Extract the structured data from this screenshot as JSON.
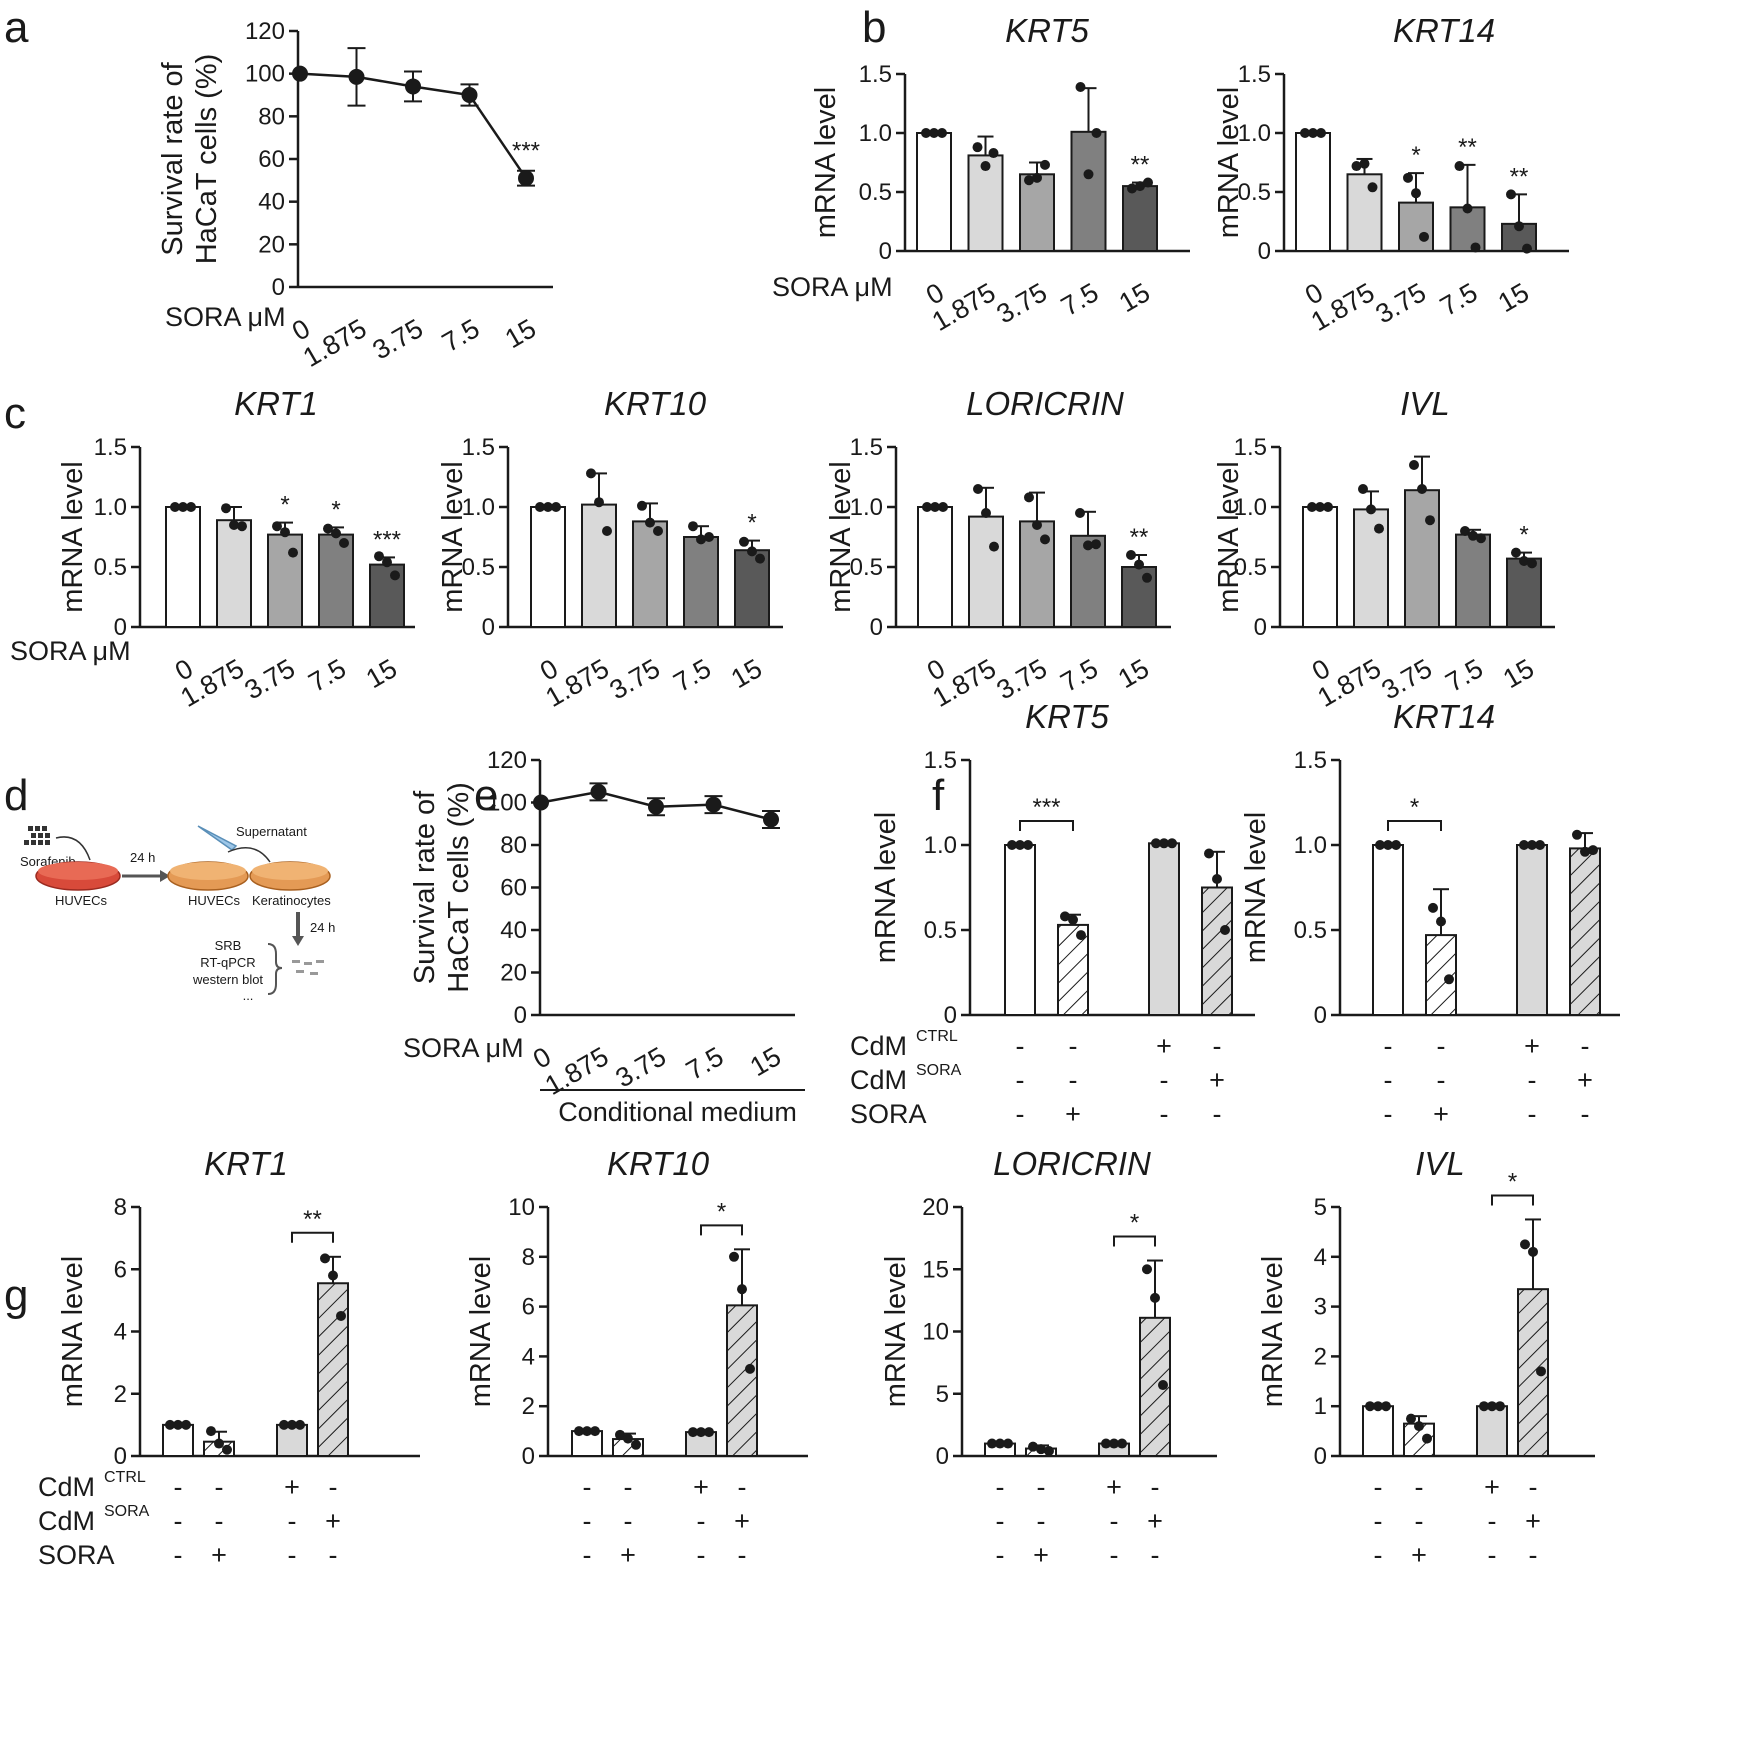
{
  "figure": {
    "panel_letters": [
      "a",
      "b",
      "c",
      "d",
      "e",
      "f",
      "g"
    ],
    "ylabel_mrna": "mRNA level",
    "ylabel_survival": "Survival rate of HaCaT cells (%)",
    "sora_um_label": "SORA μM",
    "conditional_medium_label": "Conditional medium",
    "cdm_prefix": "CdM",
    "cdm_ctrl_sup": "CTRL",
    "cdm_sora_sup": "SORA",
    "sora_label": "SORA"
  },
  "schematic": {
    "sorafenib": "Sorafenib",
    "huvecs_1": "HUVECs",
    "step_1": "24 h",
    "supernatant": "Supernatant",
    "huvecs_2": "HUVECs",
    "keratinocytes": "Keratinocytes",
    "step_2": "24 h",
    "assays": [
      "SRB",
      "RT-qPCR",
      "western blot",
      "..."
    ]
  },
  "chart_data": [
    {
      "id": "a",
      "type": "line",
      "title": "",
      "xlabel": "SORA μM",
      "ylabel": "Survival rate of HaCaT cells (%)",
      "categories": [
        "0",
        "1.875",
        "3.75",
        "7.5",
        "15"
      ],
      "values": [
        100,
        98.5,
        94,
        90,
        51
      ],
      "errors": [
        0,
        13.5,
        7,
        5,
        3.5
      ],
      "significance": [
        "",
        "",
        "",
        "",
        "***"
      ],
      "ylim": [
        0,
        120
      ],
      "yticks": [
        0,
        20,
        40,
        60,
        80,
        100,
        120
      ]
    },
    {
      "id": "b-krt5",
      "type": "bar",
      "title": "KRT5",
      "xlabel": "SORA μM",
      "ylabel": "mRNA level",
      "categories": [
        "0",
        "1.875",
        "3.75",
        "7.5",
        "15"
      ],
      "values": [
        1.0,
        0.81,
        0.65,
        1.01,
        0.55
      ],
      "errors": [
        0,
        0.16,
        0.1,
        0.37,
        0.03
      ],
      "points": [
        [
          1.0,
          1.0,
          1.0
        ],
        [
          0.88,
          0.72,
          0.83
        ],
        [
          0.6,
          0.62,
          0.73
        ],
        [
          1.39,
          0.65,
          1.0
        ],
        [
          0.53,
          0.55,
          0.58
        ]
      ],
      "significance": [
        "",
        "",
        "",
        "",
        "**"
      ],
      "ylim": [
        0,
        1.5
      ],
      "yticks": [
        "0",
        "0.5",
        "1.0",
        "1.5"
      ]
    },
    {
      "id": "b-krt14",
      "type": "bar",
      "title": "KRT14",
      "xlabel": "SORA μM",
      "ylabel": "mRNA level",
      "categories": [
        "0",
        "1.875",
        "3.75",
        "7.5",
        "15"
      ],
      "values": [
        1.0,
        0.65,
        0.41,
        0.37,
        0.23
      ],
      "errors": [
        0,
        0.13,
        0.25,
        0.36,
        0.25
      ],
      "points": [
        [
          1.0,
          1.0,
          1.0
        ],
        [
          0.72,
          0.74,
          0.54
        ],
        [
          0.62,
          0.49,
          0.12
        ],
        [
          0.72,
          0.36,
          0.03
        ],
        [
          0.48,
          0.21,
          0.02
        ]
      ],
      "significance": [
        "",
        "",
        "*",
        "**",
        "**"
      ],
      "ylim": [
        0,
        1.5
      ],
      "yticks": [
        "0",
        "0.5",
        "1.0",
        "1.5"
      ]
    },
    {
      "id": "c-krt1",
      "type": "bar",
      "title": "KRT1",
      "xlabel": "SORA μM",
      "ylabel": "mRNA level",
      "categories": [
        "0",
        "1.875",
        "3.75",
        "7.5",
        "15"
      ],
      "values": [
        1.0,
        0.89,
        0.77,
        0.77,
        0.52
      ],
      "errors": [
        0,
        0.11,
        0.1,
        0.06,
        0.06
      ],
      "points": [
        [
          1.0,
          1.0,
          1.0
        ],
        [
          0.99,
          0.85,
          0.84
        ],
        [
          0.84,
          0.79,
          0.62
        ],
        [
          0.82,
          0.78,
          0.7
        ],
        [
          0.59,
          0.54,
          0.43
        ]
      ],
      "significance": [
        "",
        "",
        "*",
        "*",
        "***"
      ],
      "ylim": [
        0,
        1.5
      ],
      "yticks": [
        "0",
        "0.5",
        "1.0",
        "1.5"
      ]
    },
    {
      "id": "c-krt10",
      "type": "bar",
      "title": "KRT10",
      "xlabel": "SORA μM",
      "ylabel": "mRNA level",
      "categories": [
        "0",
        "1.875",
        "3.75",
        "7.5",
        "15"
      ],
      "values": [
        1.0,
        1.02,
        0.88,
        0.75,
        0.64
      ],
      "errors": [
        0,
        0.26,
        0.15,
        0.09,
        0.08
      ],
      "points": [
        [
          1.0,
          1.0,
          1.0
        ],
        [
          1.28,
          1.04,
          0.8
        ],
        [
          1.01,
          0.87,
          0.8
        ],
        [
          0.84,
          0.73,
          0.75
        ],
        [
          0.71,
          0.63,
          0.57
        ]
      ],
      "significance": [
        "",
        "",
        "",
        "",
        "*"
      ],
      "ylim": [
        0,
        1.5
      ],
      "yticks": [
        "0",
        "0.5",
        "1.0",
        "1.5"
      ]
    },
    {
      "id": "c-loricrin",
      "type": "bar",
      "title": "LORICRIN",
      "xlabel": "SORA μM",
      "ylabel": "mRNA level",
      "categories": [
        "0",
        "1.875",
        "3.75",
        "7.5",
        "15"
      ],
      "values": [
        1.0,
        0.92,
        0.88,
        0.76,
        0.5
      ],
      "errors": [
        0,
        0.24,
        0.24,
        0.2,
        0.1
      ],
      "points": [
        [
          1.0,
          1.0,
          1.0
        ],
        [
          1.15,
          0.95,
          0.67
        ],
        [
          1.08,
          0.85,
          0.73
        ],
        [
          0.95,
          0.68,
          0.69
        ],
        [
          0.6,
          0.52,
          0.41
        ]
      ],
      "significance": [
        "",
        "",
        "",
        "",
        "**"
      ],
      "ylim": [
        0,
        1.5
      ],
      "yticks": [
        "0",
        "0.5",
        "1.0",
        "1.5"
      ]
    },
    {
      "id": "c-ivl",
      "type": "bar",
      "title": "IVL",
      "xlabel": "SORA μM",
      "ylabel": "mRNA level",
      "categories": [
        "0",
        "1.875",
        "3.75",
        "7.5",
        "15"
      ],
      "values": [
        1.0,
        0.98,
        1.14,
        0.77,
        0.57
      ],
      "errors": [
        0,
        0.15,
        0.28,
        0.04,
        0.05
      ],
      "points": [
        [
          1.0,
          1.0,
          1.0
        ],
        [
          1.15,
          0.98,
          0.82
        ],
        [
          1.35,
          1.15,
          0.89
        ],
        [
          0.8,
          0.76,
          0.74
        ],
        [
          0.62,
          0.55,
          0.53
        ]
      ],
      "significance": [
        "",
        "",
        "",
        "",
        "*"
      ],
      "ylim": [
        0,
        1.5
      ],
      "yticks": [
        "0",
        "0.5",
        "1.0",
        "1.5"
      ]
    },
    {
      "id": "e",
      "type": "line",
      "title": "",
      "xlabel": "SORA μM",
      "ylabel": "Survival rate of HaCaT cells (%)",
      "categories": [
        "0",
        "1.875",
        "3.75",
        "7.5",
        "15"
      ],
      "values": [
        100,
        105,
        98,
        99,
        92
      ],
      "errors": [
        0,
        4,
        4,
        4,
        4
      ],
      "significance": [
        "",
        "",
        "",
        "",
        ""
      ],
      "group_label": "Conditional medium",
      "ylim": [
        0,
        120
      ],
      "yticks": [
        0,
        20,
        40,
        60,
        80,
        100,
        120
      ]
    },
    {
      "id": "f-krt5",
      "type": "bar",
      "title": "KRT5",
      "ylabel": "mRNA level",
      "conditions": [
        {
          "cdm_ctrl": "-",
          "cdm_sora": "-",
          "sora": "-"
        },
        {
          "cdm_ctrl": "-",
          "cdm_sora": "-",
          "sora": "+"
        },
        {
          "cdm_ctrl": "+",
          "cdm_sora": "-",
          "sora": "-"
        },
        {
          "cdm_ctrl": "-",
          "cdm_sora": "+",
          "sora": "-"
        }
      ],
      "values": [
        1.0,
        0.53,
        1.01,
        0.75
      ],
      "errors": [
        0,
        0.06,
        0,
        0.21
      ],
      "points": [
        [
          1.0,
          1.0,
          1.0
        ],
        [
          0.58,
          0.56,
          0.47
        ],
        [
          1.01,
          1.01,
          1.01
        ],
        [
          0.95,
          0.8,
          0.5
        ]
      ],
      "brackets": [
        {
          "from": 0,
          "to": 1,
          "label": "***"
        }
      ],
      "ylim": [
        0,
        1.5
      ],
      "yticks": [
        "0",
        "0.5",
        "1.0",
        "1.5"
      ]
    },
    {
      "id": "f-krt14",
      "type": "bar",
      "title": "KRT14",
      "ylabel": "mRNA level",
      "conditions": [
        {
          "cdm_ctrl": "-",
          "cdm_sora": "-",
          "sora": "-"
        },
        {
          "cdm_ctrl": "-",
          "cdm_sora": "-",
          "sora": "+"
        },
        {
          "cdm_ctrl": "+",
          "cdm_sora": "-",
          "sora": "-"
        },
        {
          "cdm_ctrl": "-",
          "cdm_sora": "+",
          "sora": "-"
        }
      ],
      "values": [
        1.0,
        0.47,
        1.0,
        0.98
      ],
      "errors": [
        0,
        0.27,
        0,
        0.09
      ],
      "points": [
        [
          1.0,
          1.0,
          1.0
        ],
        [
          0.63,
          0.55,
          0.21
        ],
        [
          1.0,
          1.0,
          1.0
        ],
        [
          1.06,
          0.96,
          0.97
        ]
      ],
      "brackets": [
        {
          "from": 0,
          "to": 1,
          "label": "*"
        }
      ],
      "ylim": [
        0,
        1.5
      ],
      "yticks": [
        "0",
        "0.5",
        "1.0",
        "1.5"
      ]
    },
    {
      "id": "g-krt1",
      "type": "bar",
      "title": "KRT1",
      "ylabel": "mRNA level",
      "conditions": [
        {
          "cdm_ctrl": "-",
          "cdm_sora": "-",
          "sora": "-"
        },
        {
          "cdm_ctrl": "-",
          "cdm_sora": "-",
          "sora": "+"
        },
        {
          "cdm_ctrl": "+",
          "cdm_sora": "-",
          "sora": "-"
        },
        {
          "cdm_ctrl": "-",
          "cdm_sora": "+",
          "sora": "-"
        }
      ],
      "values": [
        1.0,
        0.46,
        1.0,
        5.55
      ],
      "errors": [
        0,
        0.32,
        0,
        0.85
      ],
      "points": [
        [
          1.0,
          1.0,
          1.0
        ],
        [
          0.8,
          0.4,
          0.2
        ],
        [
          1.0,
          1.0,
          1.0
        ],
        [
          6.35,
          5.8,
          4.5
        ]
      ],
      "brackets": [
        {
          "from": 2,
          "to": 3,
          "label": "**"
        }
      ],
      "ylim": [
        0,
        8
      ],
      "yticks": [
        "0",
        "2",
        "4",
        "6",
        "8"
      ]
    },
    {
      "id": "g-krt10",
      "type": "bar",
      "title": "KRT10",
      "ylabel": "mRNA level",
      "conditions": [
        {
          "cdm_ctrl": "-",
          "cdm_sora": "-",
          "sora": "-"
        },
        {
          "cdm_ctrl": "-",
          "cdm_sora": "-",
          "sora": "+"
        },
        {
          "cdm_ctrl": "+",
          "cdm_sora": "-",
          "sora": "-"
        },
        {
          "cdm_ctrl": "-",
          "cdm_sora": "+",
          "sora": "-"
        }
      ],
      "values": [
        1.0,
        0.68,
        0.96,
        6.05
      ],
      "errors": [
        0,
        0.22,
        0,
        2.25
      ],
      "points": [
        [
          1.0,
          1.0,
          1.0
        ],
        [
          0.85,
          0.7,
          0.45
        ],
        [
          0.96,
          0.96,
          0.96
        ],
        [
          8.0,
          6.7,
          3.5
        ]
      ],
      "brackets": [
        {
          "from": 2,
          "to": 3,
          "label": "*"
        }
      ],
      "ylim": [
        0,
        10
      ],
      "yticks": [
        "0",
        "2",
        "4",
        "6",
        "8",
        "10"
      ]
    },
    {
      "id": "g-loricrin",
      "type": "bar",
      "title": "LORICRIN",
      "ylabel": "mRNA level",
      "conditions": [
        {
          "cdm_ctrl": "-",
          "cdm_sora": "-",
          "sora": "-"
        },
        {
          "cdm_ctrl": "-",
          "cdm_sora": "-",
          "sora": "+"
        },
        {
          "cdm_ctrl": "+",
          "cdm_sora": "-",
          "sora": "-"
        },
        {
          "cdm_ctrl": "-",
          "cdm_sora": "+",
          "sora": "-"
        }
      ],
      "values": [
        1.0,
        0.6,
        1.0,
        11.1
      ],
      "errors": [
        0,
        0.25,
        0,
        4.6
      ],
      "points": [
        [
          1.0,
          1.0,
          1.0
        ],
        [
          0.75,
          0.55,
          0.4
        ],
        [
          1.0,
          1.0,
          1.0
        ],
        [
          15.0,
          12.7,
          5.7
        ]
      ],
      "brackets": [
        {
          "from": 2,
          "to": 3,
          "label": "*"
        }
      ],
      "ylim": [
        0,
        20
      ],
      "yticks": [
        "0",
        "5",
        "10",
        "15",
        "20"
      ]
    },
    {
      "id": "g-ivl",
      "type": "bar",
      "title": "IVL",
      "ylabel": "mRNA level",
      "conditions": [
        {
          "cdm_ctrl": "-",
          "cdm_sora": "-",
          "sora": "-"
        },
        {
          "cdm_ctrl": "-",
          "cdm_sora": "-",
          "sora": "+"
        },
        {
          "cdm_ctrl": "+",
          "cdm_sora": "-",
          "sora": "-"
        },
        {
          "cdm_ctrl": "-",
          "cdm_sora": "+",
          "sora": "-"
        }
      ],
      "values": [
        1.0,
        0.65,
        1.0,
        3.35
      ],
      "errors": [
        0,
        0.15,
        0,
        1.4
      ],
      "points": [
        [
          1.0,
          1.0,
          1.0
        ],
        [
          0.75,
          0.6,
          0.35
        ],
        [
          1.0,
          1.0,
          1.0
        ],
        [
          4.25,
          4.1,
          1.7
        ]
      ],
      "brackets": [
        {
          "from": 2,
          "to": 3,
          "label": "*"
        }
      ],
      "ylim": [
        0,
        5
      ],
      "yticks": [
        "0",
        "1",
        "2",
        "3",
        "4",
        "5"
      ]
    }
  ]
}
